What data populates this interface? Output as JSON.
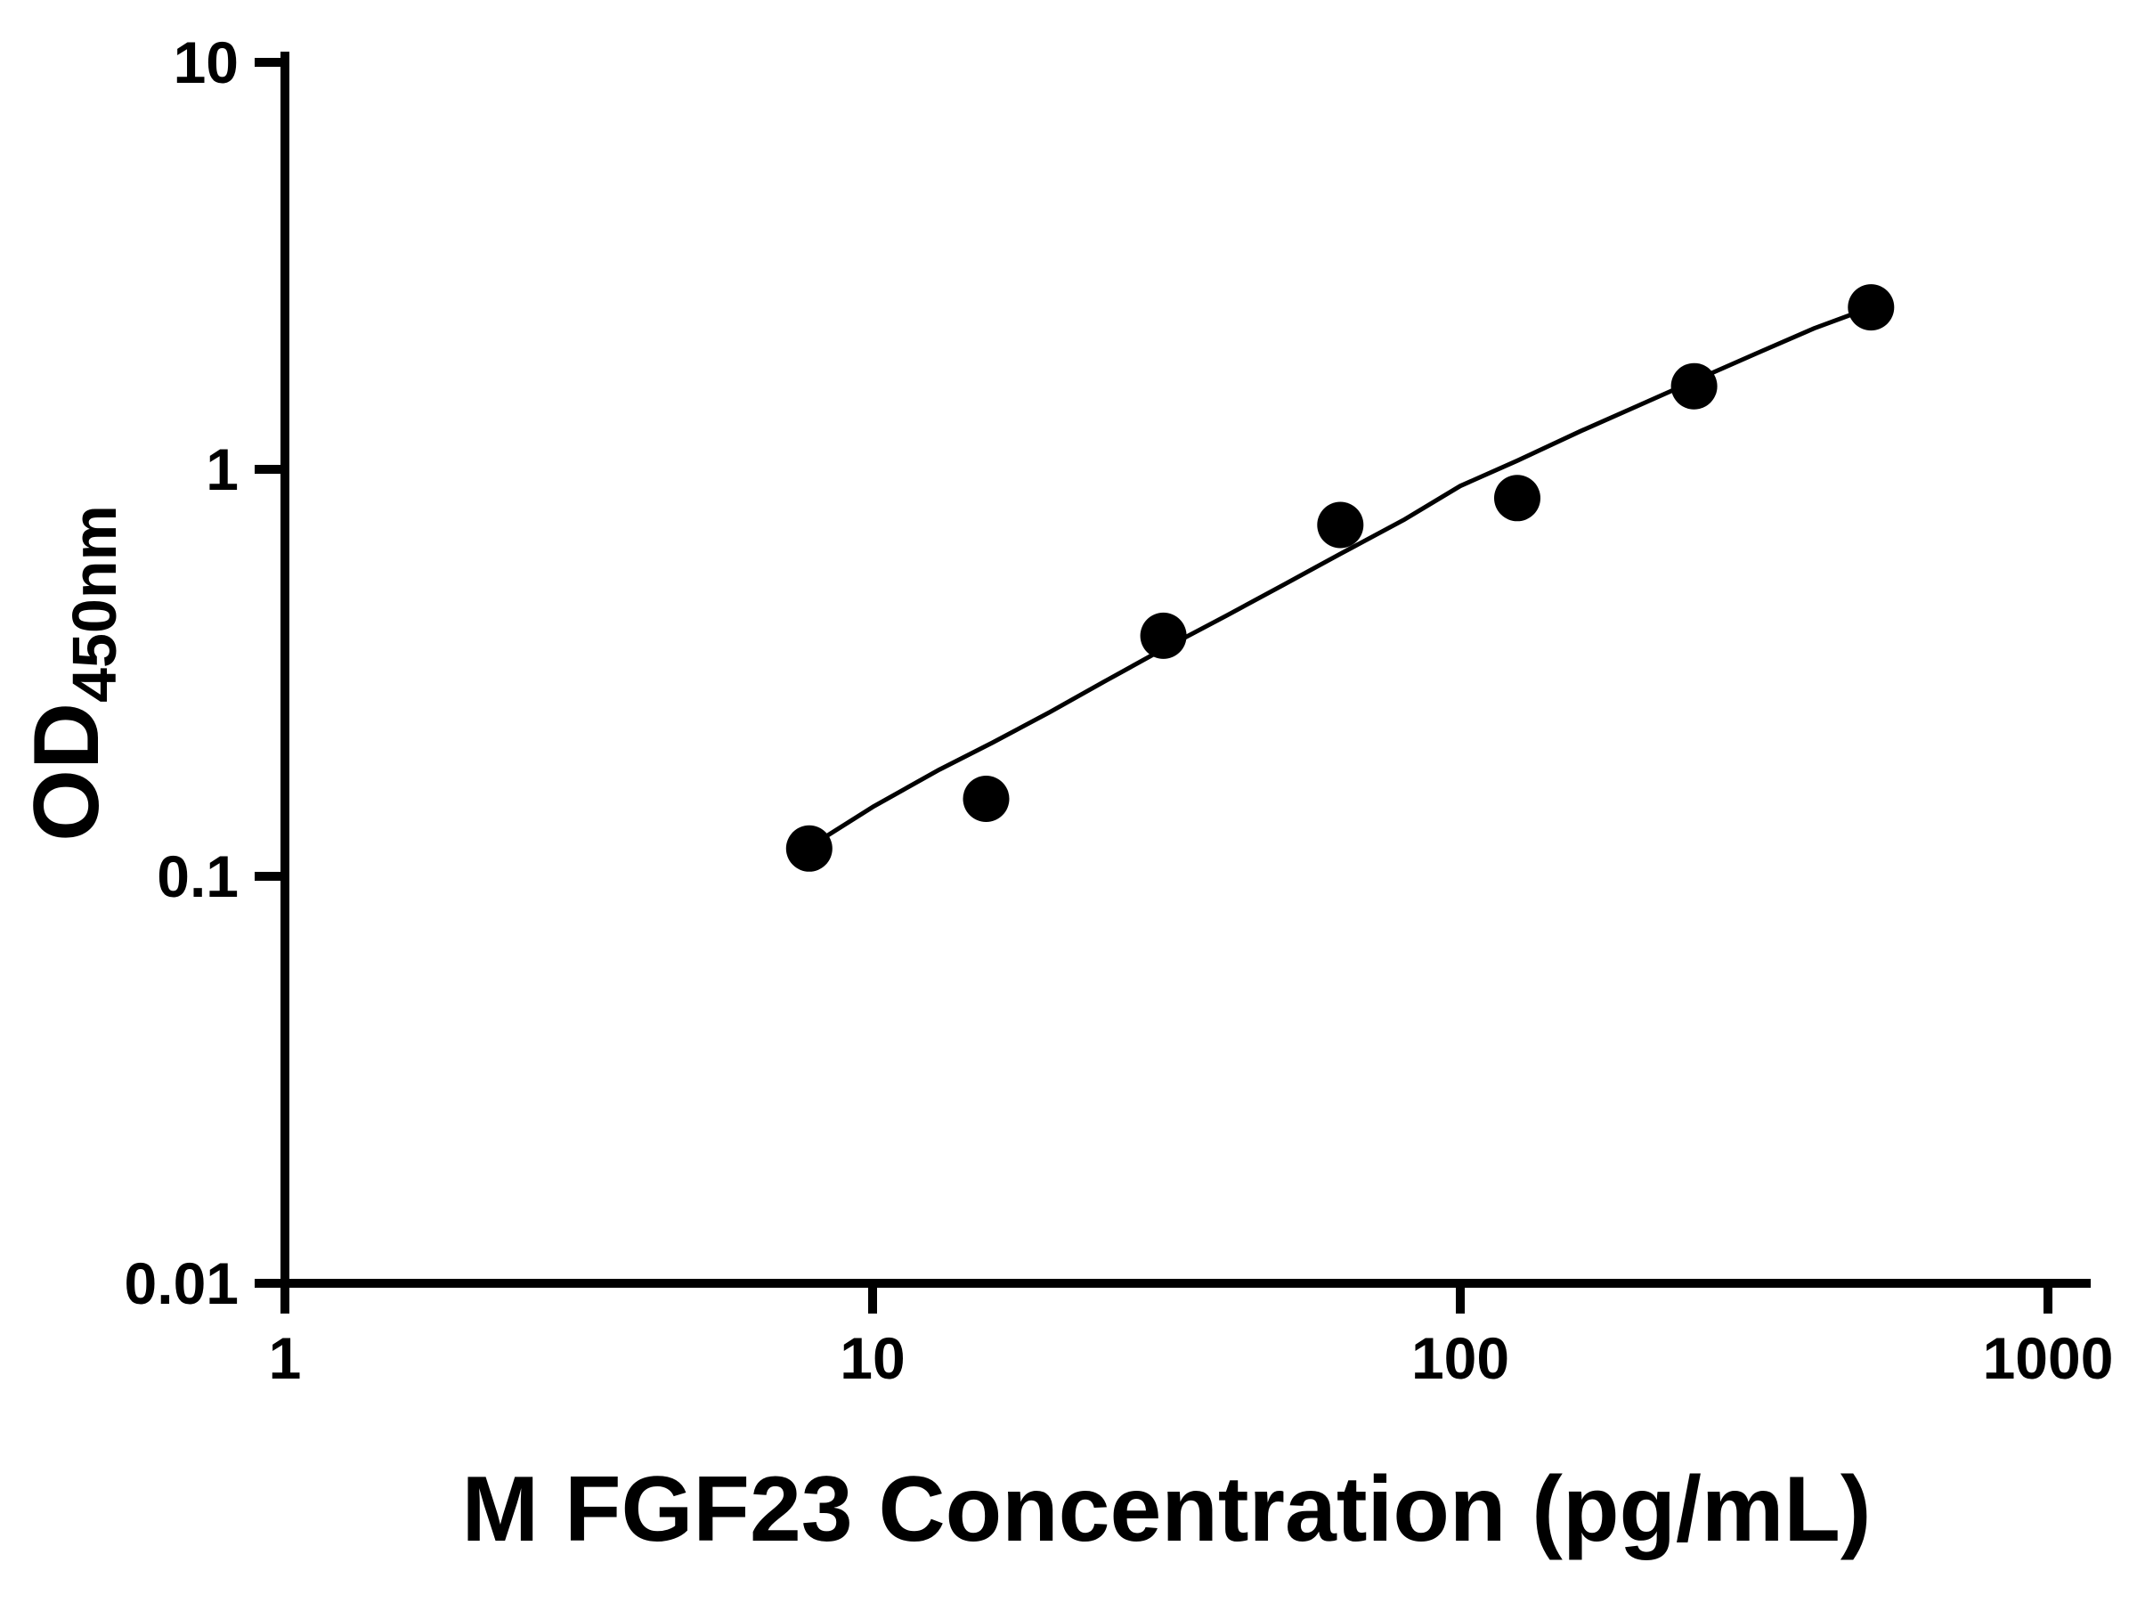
{
  "chart_data": {
    "type": "scatter",
    "title": "",
    "xlabel": "M FGF23 Concentration (pg/mL)",
    "ylabel": "OD",
    "ylabel_subscript": "450nm",
    "x_scale": "log",
    "y_scale": "log",
    "xlim": [
      1,
      1000
    ],
    "ylim": [
      0.01,
      10
    ],
    "x_ticks": [
      1,
      10,
      100,
      1000
    ],
    "y_ticks": [
      0.01,
      0.1,
      1,
      10
    ],
    "x_tick_labels": [
      "1",
      "10",
      "100",
      "1000"
    ],
    "y_tick_labels": [
      "0.01",
      "0.1",
      "1",
      "10"
    ],
    "grid": false,
    "legend": "none",
    "points": [
      {
        "x": 7.8,
        "y": 0.117
      },
      {
        "x": 15.6,
        "y": 0.155
      },
      {
        "x": 31.25,
        "y": 0.39
      },
      {
        "x": 62.5,
        "y": 0.73
      },
      {
        "x": 125,
        "y": 0.85
      },
      {
        "x": 250,
        "y": 1.6
      },
      {
        "x": 500,
        "y": 2.5
      }
    ],
    "fit_curve": [
      [
        7.8,
        0.118
      ],
      [
        10,
        0.148
      ],
      [
        13,
        0.183
      ],
      [
        16,
        0.213
      ],
      [
        20,
        0.253
      ],
      [
        25,
        0.303
      ],
      [
        31.25,
        0.362
      ],
      [
        40,
        0.437
      ],
      [
        50,
        0.52
      ],
      [
        62.5,
        0.62
      ],
      [
        80,
        0.75
      ],
      [
        100,
        0.91
      ],
      [
        125,
        1.05
      ],
      [
        160,
        1.24
      ],
      [
        200,
        1.43
      ],
      [
        250,
        1.65
      ],
      [
        320,
        1.93
      ],
      [
        400,
        2.22
      ],
      [
        500,
        2.5
      ]
    ],
    "marker_color": "#000000",
    "line_color": "#000000",
    "axis_color": "#000000",
    "background": "#ffffff"
  }
}
